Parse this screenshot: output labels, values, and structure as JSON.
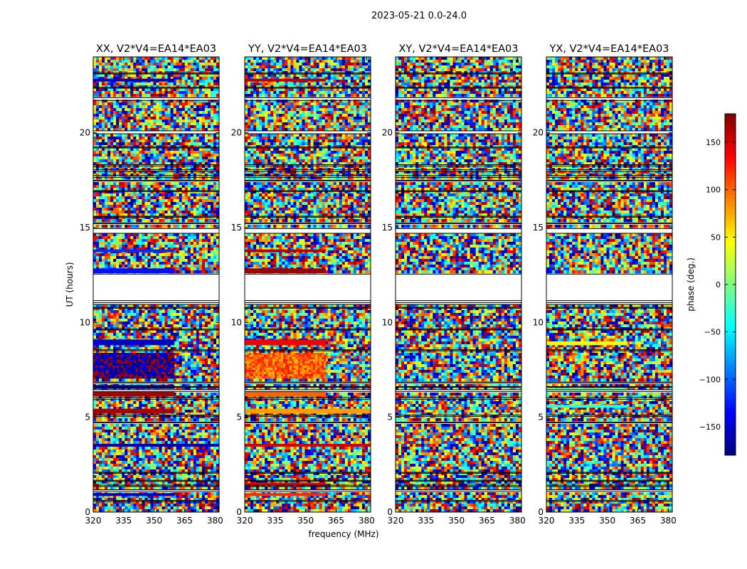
{
  "suptitle": "2023-05-21 0.0-24.0",
  "chart_data": {
    "type": "heatmap",
    "description_units": "phase in degrees vs frequency (MHz) and UT (hours)",
    "xlabel": "frequency (MHz)",
    "ylabel": "UT (hours)",
    "xlim": [
      320,
      382
    ],
    "ylim": [
      0,
      24
    ],
    "xticks": [
      "320",
      "335",
      "350",
      "365",
      "380"
    ],
    "yticks": [
      "0",
      "5",
      "10",
      "15",
      "20"
    ],
    "panels": [
      {
        "title": "XX, V2*V4=EA14*EA03",
        "bands": [
          {
            "y0": 0.85,
            "y1": 1.0,
            "x1": 360,
            "phase": -155
          },
          {
            "y0": 3.45,
            "y1": 3.6,
            "x1": 382,
            "phase": -160
          },
          {
            "y0": 5.2,
            "y1": 5.45,
            "x1": 360,
            "phase": 165
          },
          {
            "y0": 6.1,
            "y1": 6.35,
            "x1": 360,
            "phase": 165
          },
          {
            "y0": 6.5,
            "y1": 6.7,
            "x1": 360,
            "phase": -150
          },
          {
            "y0": 7.0,
            "y1": 8.4,
            "x1": 360,
            "phase": -170,
            "noisy": true
          },
          {
            "y0": 8.8,
            "y1": 9.1,
            "x1": 360,
            "phase": -155
          },
          {
            "y0": 12.6,
            "y1": 12.85,
            "x1": 360,
            "phase": -130
          },
          {
            "y0": 13.7,
            "y1": 13.85,
            "x1": 360,
            "phase": -120
          },
          {
            "y0": 22.7,
            "y1": 22.85,
            "x1": 360,
            "phase": -160
          }
        ]
      },
      {
        "title": "YY, V2*V4=EA14*EA03",
        "bands": [
          {
            "y0": 0.85,
            "y1": 1.0,
            "x1": 360,
            "phase": 120
          },
          {
            "y0": 1.4,
            "y1": 1.55,
            "x1": 360,
            "phase": 140
          },
          {
            "y0": 3.45,
            "y1": 3.6,
            "x1": 382,
            "phase": 150
          },
          {
            "y0": 5.2,
            "y1": 5.45,
            "x1": 382,
            "phase": 80
          },
          {
            "y0": 6.1,
            "y1": 6.35,
            "x1": 360,
            "phase": 100
          },
          {
            "y0": 7.0,
            "y1": 8.4,
            "x1": 360,
            "phase": 100,
            "noisy": true
          },
          {
            "y0": 8.8,
            "y1": 9.1,
            "x1": 360,
            "phase": 140
          },
          {
            "y0": 12.6,
            "y1": 12.85,
            "x1": 360,
            "phase": 170
          },
          {
            "y0": 13.7,
            "y1": 13.85,
            "x1": 360,
            "phase": 160
          },
          {
            "y0": 22.7,
            "y1": 22.85,
            "x1": 360,
            "phase": 160
          }
        ]
      },
      {
        "title": "XY, V2*V4=EA14*EA03",
        "bands": []
      },
      {
        "title": "YX, V2*V4=EA14*EA03",
        "bands": [
          {
            "y0": 5.5,
            "y1": 5.65,
            "x1": 360,
            "phase": -30
          },
          {
            "y0": 6.4,
            "y1": 6.55,
            "x1": 360,
            "phase": -10
          },
          {
            "y0": 8.8,
            "y1": 9.0,
            "x1": 360,
            "phase": 40
          }
        ]
      }
    ],
    "gaps_hours": [
      [
        0.55,
        0.62
      ],
      [
        1.1,
        1.18
      ],
      [
        1.35,
        1.42
      ],
      [
        1.62,
        1.68
      ],
      [
        2.05,
        2.1
      ],
      [
        4.7,
        4.75
      ],
      [
        5.05,
        5.12
      ],
      [
        5.95,
        6.05
      ],
      [
        6.35,
        6.45
      ],
      [
        6.58,
        6.62
      ],
      [
        6.8,
        6.86
      ],
      [
        8.5,
        8.56
      ],
      [
        9.6,
        9.65
      ],
      [
        10.75,
        10.8
      ],
      [
        10.95,
        11.05
      ],
      [
        11.15,
        12.55
      ],
      [
        14.7,
        14.95
      ],
      [
        15.2,
        15.25
      ],
      [
        15.55,
        15.6
      ],
      [
        16.9,
        16.95
      ],
      [
        17.45,
        17.5
      ],
      [
        17.65,
        17.75
      ],
      [
        17.95,
        18.05
      ],
      [
        18.25,
        18.32
      ],
      [
        19.2,
        19.25
      ],
      [
        19.95,
        20.1
      ],
      [
        21.7,
        21.85
      ],
      [
        22.35,
        22.4
      ],
      [
        23.1,
        23.15
      ]
    ],
    "colorbar": {
      "label": "phase (deg.)",
      "min": -180,
      "max": 180,
      "ticks": [
        "150",
        "100",
        "50",
        "0",
        "−50",
        "−100",
        "−150"
      ],
      "tick_values": [
        150,
        100,
        50,
        0,
        -50,
        -100,
        -150
      ],
      "colormap": "jet"
    }
  }
}
